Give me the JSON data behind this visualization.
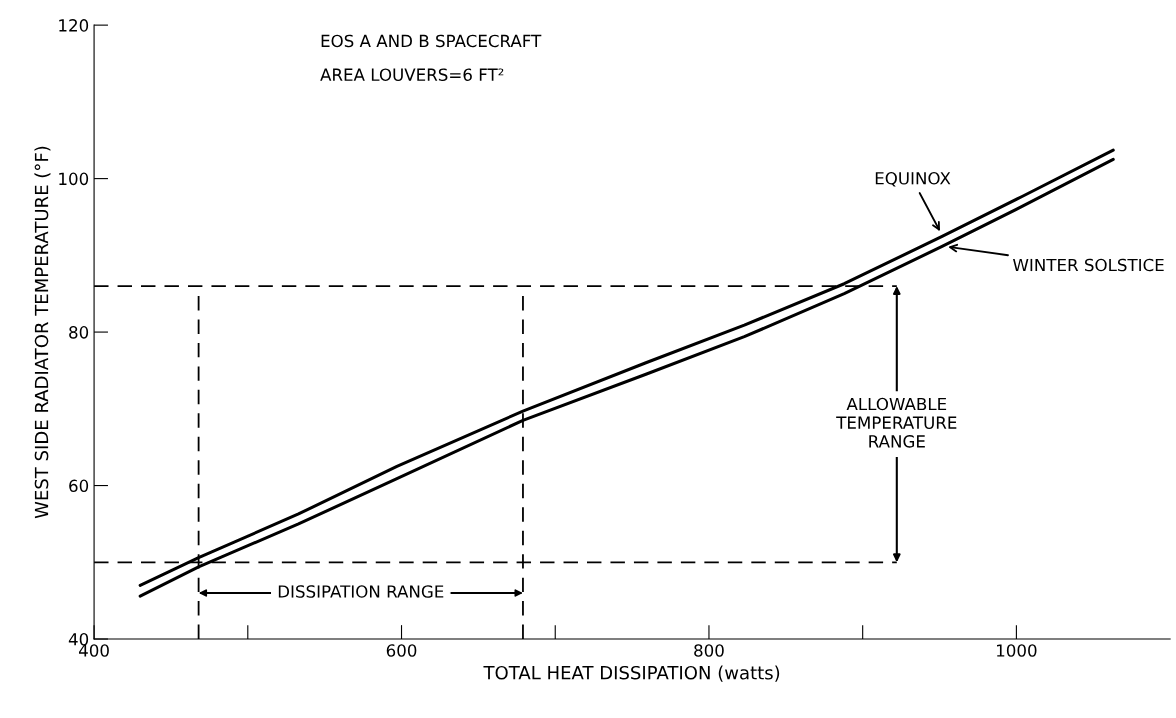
{
  "chart_data": {
    "type": "line",
    "xlabel": "TOTAL HEAT DISSIPATION (watts)",
    "ylabel": "WEST SIDE RADIATOR TEMPERATURE (°F)",
    "x": [
      430,
      468,
      533,
      597,
      679,
      759,
      823,
      888,
      952,
      1004,
      1063
    ],
    "series": [
      {
        "name": "EQUINOX",
        "color": "#000000",
        "values": [
          47.0,
          50.6,
          56.3,
          62.5,
          69.7,
          76.0,
          80.9,
          86.3,
          92.5,
          97.7,
          103.7
        ]
      },
      {
        "name": "WINTER SOLSTICE",
        "color": "#000000",
        "values": [
          45.6,
          49.4,
          55.0,
          60.9,
          68.5,
          74.5,
          79.4,
          85.0,
          91.2,
          96.4,
          102.5
        ]
      }
    ],
    "xlim": [
      400,
      1100
    ],
    "xticks": [
      400,
      {
        "value": 500,
        "label": null
      },
      600,
      {
        "value": 700,
        "label": null
      },
      800,
      {
        "value": 900,
        "label": null
      },
      1000
    ],
    "ylim": [
      40,
      120
    ],
    "yticks": [
      40,
      60,
      80,
      100,
      120
    ],
    "ref_lines": [
      {
        "axis": "y",
        "value": 50,
        "color": "#000000",
        "line_style": "dashed"
      },
      {
        "axis": "y",
        "value": 86,
        "color": "#000000",
        "line_style": "dashed"
      },
      {
        "axis": "x",
        "value": 468,
        "color": "#000000",
        "line_style": "dashed"
      },
      {
        "axis": "x",
        "value": 679,
        "color": "#000000",
        "line_style": "dashed"
      }
    ],
    "annotations": [
      "EOS A AND B SPACECRAFT",
      "AREA LOUVERS=6 FT²",
      "ALLOWABLE\nTEMPERATURE\nRANGE",
      "DISSIPATION RANGE"
    ],
    "grid": false,
    "legend": false,
    "marker": "none",
    "line_style": "solid"
  }
}
